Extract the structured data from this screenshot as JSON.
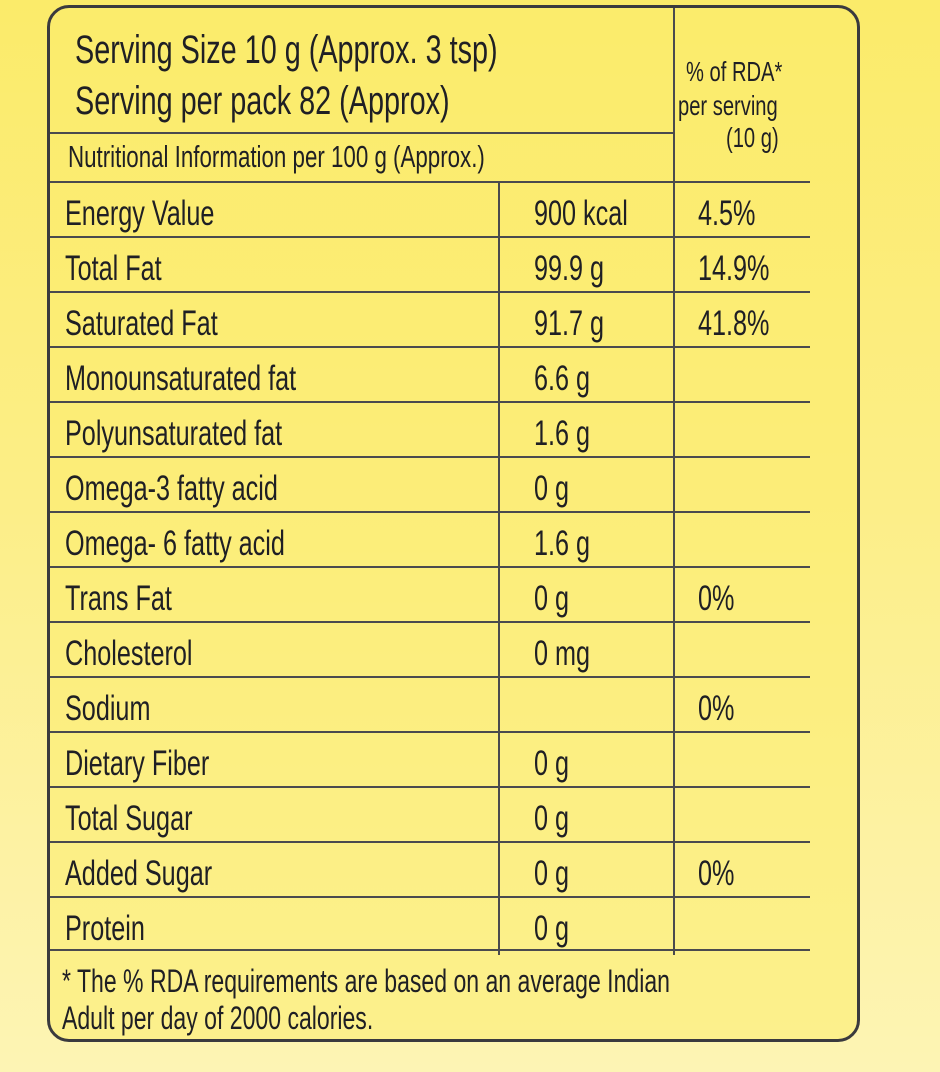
{
  "header": {
    "serving_size": "Serving Size 10 g (Approx. 3 tsp)",
    "serving_per_pack": "Serving per pack 82 (Approx)",
    "nutrition_info": "Nutritional Information per 100 g (Approx.)",
    "rda_line1": "% of RDA*",
    "rda_line2": "per serving",
    "rda_line3": "(10 g)"
  },
  "rows": [
    {
      "nutrient": "Energy Value",
      "amount": "900 kcal",
      "rda": "4.5%"
    },
    {
      "nutrient": "Total Fat",
      "amount": "99.9 g",
      "rda": "14.9%"
    },
    {
      "nutrient": "Saturated Fat",
      "amount": "91.7 g",
      "rda": "41.8%"
    },
    {
      "nutrient": "Monounsaturated fat",
      "amount": "6.6 g",
      "rda": ""
    },
    {
      "nutrient": "Polyunsaturated fat",
      "amount": "1.6 g",
      "rda": ""
    },
    {
      "nutrient": "Omega-3 fatty acid",
      "amount": "0 g",
      "rda": ""
    },
    {
      "nutrient": "Omega- 6 fatty acid",
      "amount": "1.6 g",
      "rda": ""
    },
    {
      "nutrient": "Trans Fat",
      "amount": "0 g",
      "rda": "0%"
    },
    {
      "nutrient": "Cholesterol",
      "amount": "0 mg",
      "rda": ""
    },
    {
      "nutrient": "Sodium",
      "amount": "",
      "rda": "0%"
    },
    {
      "nutrient": "Dietary Fiber",
      "amount": "0 g",
      "rda": ""
    },
    {
      "nutrient": "Total Sugar",
      "amount": "0 g",
      "rda": ""
    },
    {
      "nutrient": "Added Sugar",
      "amount": "0 g",
      "rda": "0%"
    },
    {
      "nutrient": "Protein",
      "amount": "0 g",
      "rda": ""
    }
  ],
  "footnote": {
    "line1": "* The % RDA requirements are based on an average Indian",
    "line2": "Adult per day of 2000 calories."
  },
  "colors": {
    "background": "#fbeb6a",
    "border": "#3a3a3e",
    "text": "#1f1f24"
  }
}
